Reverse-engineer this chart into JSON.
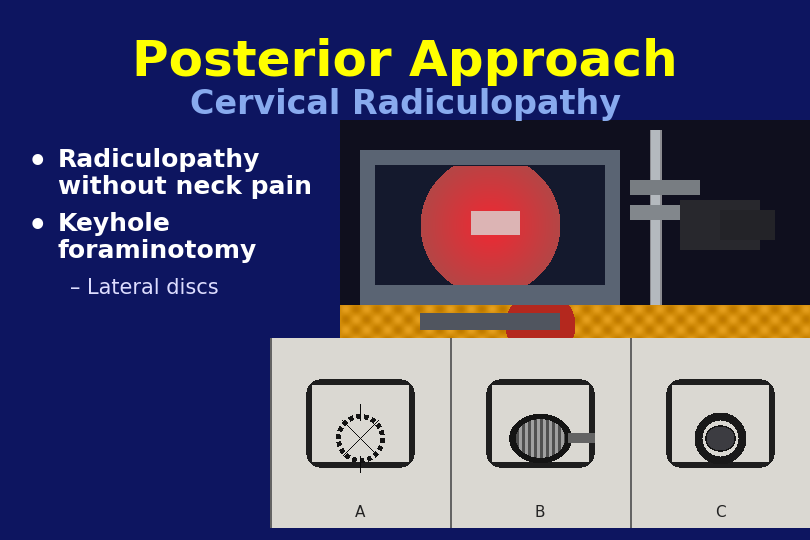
{
  "background_color": "#0d1560",
  "title1": "Posterior Approach",
  "title1_color": "#ffff00",
  "title1_fontsize": 36,
  "title1_weight": "bold",
  "title2": "Cervical Radiculopathy",
  "title2_color": "#88aaee",
  "title2_fontsize": 24,
  "title2_weight": "bold",
  "bullet1_line1": "Radiculopathy",
  "bullet1_line2": "without neck pain",
  "bullet2_line1": "Keyhole",
  "bullet2_line2": "foraminotomy",
  "sub_bullet": "– Lateral discs",
  "bullet_color": "#ffffff",
  "bullet_fontsize": 18,
  "sub_bullet_fontsize": 15,
  "sub_bullet_color": "#ddddff"
}
